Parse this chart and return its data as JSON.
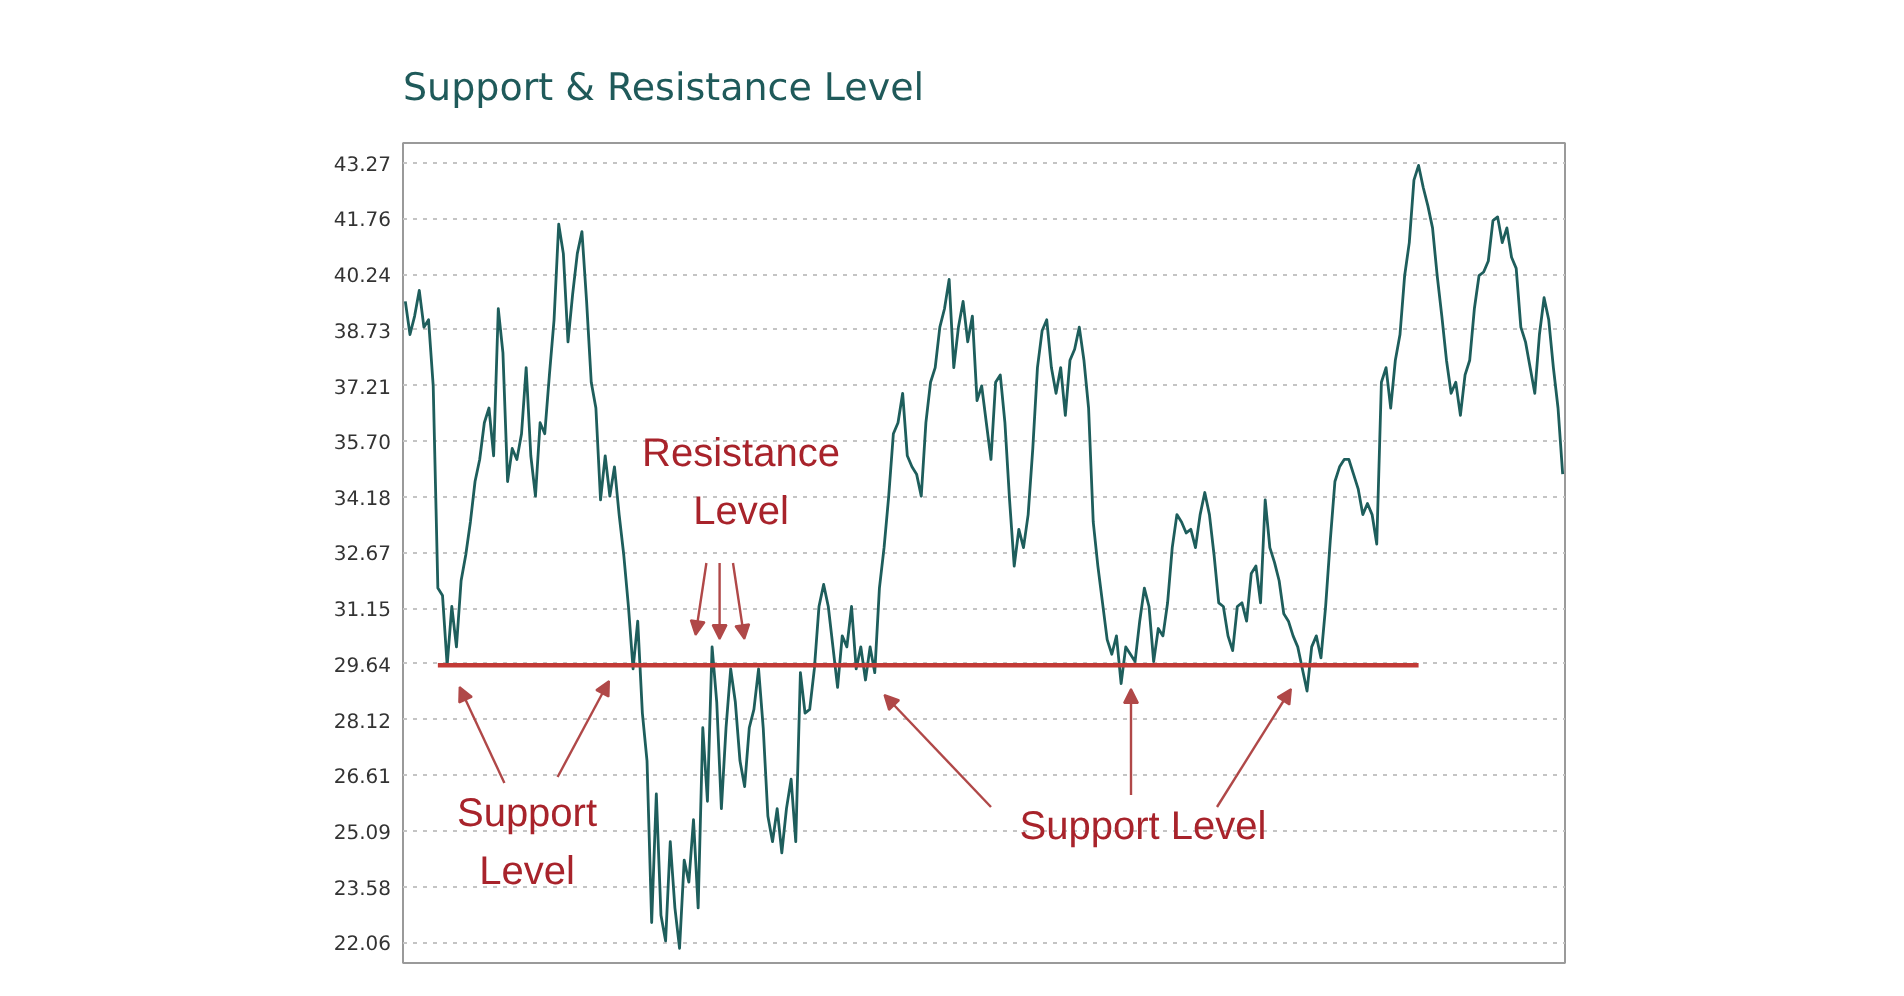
{
  "chart_data": {
    "type": "line",
    "title": "Support & Resistance Level",
    "categories": [
      null,
      null,
      null,
      null,
      null,
      null,
      null,
      null,
      null,
      null,
      null,
      null,
      null,
      null,
      null,
      null,
      null,
      null,
      null,
      null,
      null,
      null,
      null,
      null,
      null,
      null,
      null,
      null,
      null,
      null,
      null,
      null,
      null,
      null,
      null,
      null,
      null,
      null,
      null,
      null,
      null,
      null,
      null,
      null,
      null,
      null,
      null,
      null,
      null,
      null,
      null,
      null,
      null,
      null,
      null,
      null,
      null,
      null,
      null,
      null,
      null,
      null,
      null,
      null,
      null,
      null,
      null,
      null,
      null,
      null,
      null,
      null,
      null,
      null,
      null,
      null,
      null,
      null,
      null,
      null,
      null,
      null,
      null,
      null,
      null,
      null,
      null,
      null,
      null,
      null,
      null,
      null,
      null,
      null,
      null,
      null,
      null,
      null,
      null,
      null,
      null,
      null,
      null,
      null,
      null,
      null,
      null,
      null,
      null,
      null,
      null,
      null,
      null,
      null,
      null,
      null,
      null,
      null,
      null,
      null,
      null,
      null,
      null,
      null,
      null,
      null,
      null,
      null,
      null,
      null,
      null,
      null,
      null,
      null,
      null,
      null,
      null,
      null,
      null,
      null,
      null,
      null,
      null,
      null,
      null,
      null,
      null,
      null,
      null,
      null,
      null,
      null,
      null,
      null,
      null,
      null,
      null,
      null,
      null,
      null,
      null,
      null,
      null,
      null,
      null,
      null,
      null,
      null,
      null,
      null,
      null,
      null,
      null,
      null,
      null,
      null,
      null,
      null,
      null,
      null,
      null,
      null,
      null,
      null,
      null,
      null,
      null,
      null,
      null,
      null,
      null,
      null,
      null,
      null,
      null,
      null,
      null,
      null,
      null,
      null,
      null,
      null,
      null,
      null,
      null,
      null,
      null,
      null,
      null,
      null,
      null,
      null,
      null,
      null,
      null,
      null,
      null,
      null,
      null,
      null,
      null,
      null,
      null,
      null,
      null,
      null,
      null,
      null,
      null,
      null,
      null,
      null,
      null,
      null,
      null,
      null,
      null,
      null,
      null,
      null,
      null,
      null,
      null,
      null,
      null,
      null,
      null,
      null,
      null,
      null
    ],
    "ylim": [
      21.5,
      43.81
    ],
    "yticks": [
      22.06,
      23.58,
      25.09,
      26.61,
      28.12,
      29.64,
      31.15,
      32.67,
      34.18,
      {
        "value": 35.7,
        "label": "35.70"
      },
      37.21,
      38.73,
      40.24,
      41.76,
      43.27
    ],
    "grid": "y",
    "tick_labels": "y",
    "series": [
      {
        "color": "#1e5e5c",
        "values": [
          39.5,
          38.6,
          39.1,
          39.8,
          38.8,
          39.0,
          37.2,
          31.7,
          31.5,
          29.6,
          31.2,
          30.1,
          31.9,
          32.6,
          33.5,
          34.6,
          35.2,
          36.2,
          36.6,
          35.3,
          39.3,
          38.1,
          34.6,
          35.5,
          35.2,
          35.9,
          37.7,
          35.3,
          34.2,
          36.2,
          35.9,
          37.5,
          39.0,
          41.6,
          40.8,
          38.4,
          39.7,
          40.8,
          41.4,
          39.5,
          37.3,
          36.6,
          34.1,
          35.3,
          34.2,
          35.0,
          33.7,
          32.6,
          31.2,
          29.5,
          30.8,
          28.3,
          27.0,
          22.6,
          26.1,
          22.8,
          22.1,
          24.8,
          23.0,
          21.9,
          24.3,
          23.7,
          25.4,
          23.0,
          27.9,
          25.9,
          30.1,
          28.6,
          25.7,
          27.9,
          29.5,
          28.6,
          27.0,
          26.3,
          27.9,
          28.4,
          29.5,
          27.9,
          25.5,
          24.8,
          25.7,
          24.5,
          25.7,
          26.5,
          24.8,
          29.4,
          28.3,
          28.4,
          29.5,
          31.2,
          31.8,
          31.2,
          30.1,
          29.0,
          30.4,
          30.1,
          31.2,
          29.5,
          30.1,
          29.2,
          30.1,
          29.4,
          31.7,
          32.8,
          34.2,
          35.9,
          36.2,
          37.0,
          35.3,
          35.0,
          34.8,
          34.2,
          36.2,
          37.3,
          37.7,
          38.8,
          39.3,
          40.1,
          37.7,
          38.8,
          39.5,
          38.4,
          39.1,
          36.8,
          37.2,
          36.2,
          35.2,
          37.3,
          37.5,
          36.2,
          34.1,
          32.3,
          33.3,
          32.8,
          33.7,
          35.5,
          37.7,
          38.7,
          39.0,
          37.7,
          37.0,
          37.7,
          36.4,
          37.9,
          38.2,
          38.8,
          37.9,
          36.6,
          33.5,
          32.3,
          31.3,
          30.3,
          29.9,
          30.4,
          29.1,
          30.1,
          29.9,
          29.7,
          30.8,
          31.7,
          31.2,
          29.7,
          30.6,
          30.4,
          31.3,
          32.8,
          33.7,
          33.5,
          33.2,
          33.3,
          32.8,
          33.7,
          34.3,
          33.7,
          32.6,
          31.3,
          31.2,
          30.4,
          30.0,
          31.2,
          31.3,
          30.8,
          32.1,
          32.3,
          31.3,
          34.1,
          32.8,
          32.4,
          31.9,
          31.0,
          30.8,
          30.4,
          30.1,
          29.5,
          28.9,
          30.1,
          30.4,
          29.8,
          31.2,
          33.0,
          34.6,
          35.0,
          35.2,
          35.2,
          34.8,
          34.4,
          33.7,
          34.0,
          33.7,
          32.9,
          37.3,
          37.7,
          36.6,
          37.9,
          38.6,
          40.2,
          41.1,
          42.8,
          43.2,
          42.6,
          42.1,
          41.5,
          40.2,
          39.1,
          37.9,
          37.0,
          37.3,
          36.4,
          37.5,
          37.9,
          39.3,
          40.2,
          40.3,
          40.6,
          41.7,
          41.8,
          41.1,
          41.5,
          40.7,
          40.4,
          38.8,
          38.4,
          37.7,
          37.0,
          38.6,
          39.6,
          39.0,
          37.7,
          36.6,
          34.8
        ]
      },
      {
        "type": "line",
        "color": "#c23a36",
        "values": [
          null,
          null,
          null,
          null,
          null,
          null,
          null,
          29.6,
          29.6,
          29.6,
          29.6,
          29.6,
          29.6,
          29.6,
          29.6,
          29.6,
          29.6,
          29.6,
          29.6,
          29.6,
          29.6,
          29.6,
          29.6,
          29.6,
          29.6,
          29.6,
          29.6,
          29.6,
          29.6,
          29.6,
          29.6,
          29.6,
          29.6,
          29.6,
          29.6,
          29.6,
          29.6,
          29.6,
          29.6,
          29.6,
          29.6,
          29.6,
          29.6,
          29.6,
          29.6,
          29.6,
          29.6,
          29.6,
          29.6,
          29.6,
          29.6,
          29.6,
          29.6,
          29.6,
          29.6,
          29.6,
          29.6,
          29.6,
          29.6,
          29.6,
          29.6,
          29.6,
          29.6,
          29.6,
          29.6,
          29.6,
          29.6,
          29.6,
          29.6,
          29.6,
          29.6,
          29.6,
          29.6,
          29.6,
          29.6,
          29.6,
          29.6,
          29.6,
          29.6,
          29.6,
          29.6,
          29.6,
          29.6,
          29.6,
          29.6,
          29.6,
          29.6,
          29.6,
          29.6,
          29.6,
          29.6,
          29.6,
          29.6,
          29.6,
          29.6,
          29.6,
          29.6,
          29.6,
          29.6,
          29.6,
          29.6,
          29.6,
          29.6,
          29.6,
          29.6,
          29.6,
          29.6,
          29.6,
          29.6,
          29.6,
          29.6,
          29.6,
          29.6,
          29.6,
          29.6,
          29.6,
          29.6,
          29.6,
          29.6,
          29.6,
          29.6,
          29.6,
          29.6,
          29.6,
          29.6,
          29.6,
          29.6,
          29.6,
          29.6,
          29.6,
          29.6,
          29.6,
          29.6,
          29.6,
          29.6,
          29.6,
          29.6,
          29.6,
          29.6,
          29.6,
          29.6,
          29.6,
          29.6,
          29.6,
          29.6,
          29.6,
          29.6,
          29.6,
          29.6,
          29.6,
          29.6,
          29.6,
          29.6,
          29.6,
          29.6,
          29.6,
          29.6,
          29.6,
          29.6,
          29.6,
          29.6,
          29.6,
          29.6,
          29.6,
          29.6,
          29.6,
          29.6,
          29.6,
          29.6,
          29.6,
          29.6,
          29.6,
          29.6,
          29.6,
          29.6,
          29.6,
          29.6,
          29.6,
          29.6,
          29.6,
          29.6,
          29.6,
          29.6,
          29.6,
          29.6,
          29.6,
          29.6,
          29.6,
          29.6,
          29.6,
          29.6,
          29.6,
          29.6,
          29.6,
          29.6,
          29.6,
          29.6,
          29.6,
          29.6,
          29.6,
          29.6,
          29.6,
          29.6,
          29.6,
          29.6,
          29.6,
          29.6,
          29.6,
          29.6,
          29.6,
          29.6,
          29.6,
          29.6,
          29.6,
          29.6,
          29.6,
          29.6,
          29.6,
          29.6,
          null,
          null,
          null,
          null,
          null,
          null,
          null,
          null,
          null,
          null,
          null,
          null,
          null,
          null,
          null,
          null,
          null,
          null,
          null,
          null,
          null,
          null,
          null,
          null,
          null,
          null,
          null,
          null,
          null,
          null,
          null
        ]
      }
    ],
    "annotations": [
      "Resistance\nLevel",
      "Support\nLevel",
      "Support Level"
    ]
  }
}
